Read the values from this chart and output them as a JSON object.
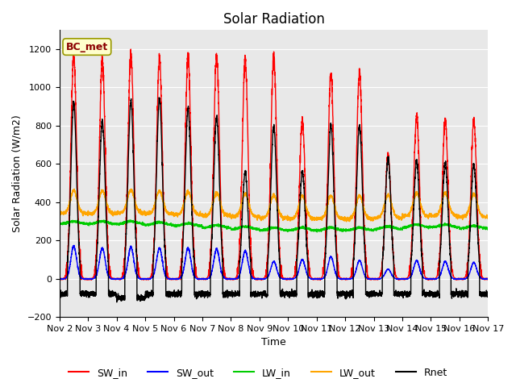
{
  "title": "Solar Radiation",
  "ylabel": "Solar Radiation (W/m2)",
  "xlabel": "Time",
  "ylim": [
    -200,
    1300
  ],
  "yticks": [
    -200,
    0,
    200,
    400,
    600,
    800,
    1000,
    1200
  ],
  "xtick_labels": [
    "Nov 2",
    "Nov 3",
    "Nov 4",
    "Nov 5",
    "Nov 6",
    "Nov 7",
    "Nov 8",
    "Nov 9",
    "Nov 10",
    "Nov 11",
    "Nov 12",
    "Nov 13",
    "Nov 14",
    "Nov 15",
    "Nov 16",
    "Nov 17"
  ],
  "annotation": "BC_met",
  "annotation_color": "#8B0000",
  "annotation_bg": "#FFFFCC",
  "colors": {
    "SW_in": "#FF0000",
    "SW_out": "#0000FF",
    "LW_in": "#00CC00",
    "LW_out": "#FFA500",
    "Rnet": "#000000"
  },
  "fig_bg": "#FFFFFF",
  "plot_bg": "#E8E8E8",
  "grid_color": "#FFFFFF",
  "n_days": 15,
  "SW_in_peak": [
    1165,
    1150,
    1180,
    1150,
    1165,
    1165,
    1150,
    1165,
    830,
    1070,
    1080,
    650,
    855,
    830,
    830
  ],
  "SW_out_peak": [
    170,
    160,
    165,
    160,
    160,
    155,
    145,
    90,
    100,
    115,
    95,
    50,
    95,
    90,
    85
  ],
  "LW_in_base": [
    285,
    285,
    285,
    280,
    275,
    265,
    258,
    252,
    252,
    252,
    252,
    258,
    268,
    268,
    262
  ],
  "LW_out_base": [
    340,
    340,
    345,
    340,
    335,
    330,
    325,
    318,
    313,
    313,
    313,
    318,
    328,
    328,
    322
  ],
  "Rnet_peak": [
    920,
    820,
    930,
    945,
    890,
    845,
    560,
    800,
    560,
    800,
    800,
    630,
    615,
    605,
    600
  ],
  "Rnet_night": [
    -80,
    -80,
    -100,
    -80,
    -80,
    -80,
    -80,
    -80,
    -80,
    -80,
    -80,
    -80,
    -80,
    -80,
    -80
  ],
  "linewidth": 1.0,
  "title_fontsize": 12,
  "label_fontsize": 9,
  "tick_fontsize": 8,
  "legend_fontsize": 9
}
